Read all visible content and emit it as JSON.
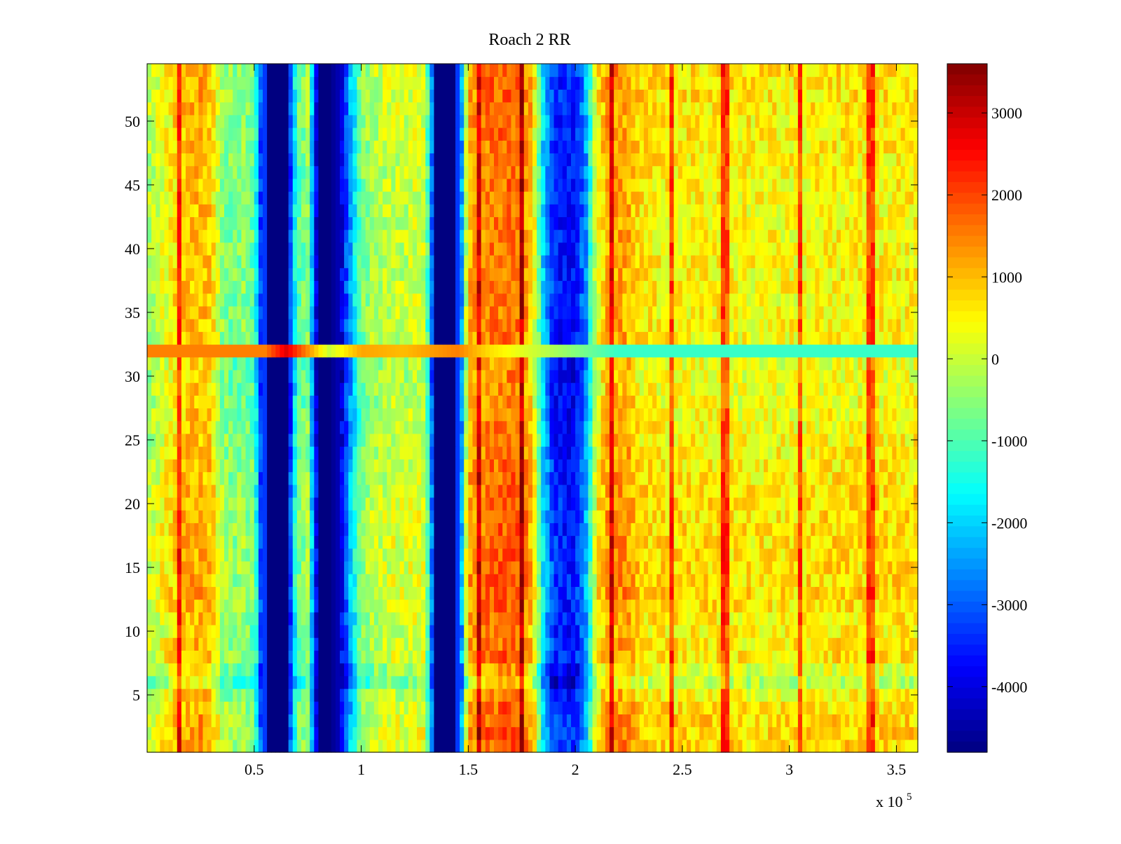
{
  "chart_data": {
    "type": "heatmap",
    "title": "Roach 2 RR",
    "xlabel": "",
    "ylabel": "",
    "x_multiplier_label": "x 10",
    "x_multiplier_exponent": "5",
    "xlim": [
      0,
      3.6
    ],
    "ylim": [
      0.5,
      54.5
    ],
    "x_ticks": [
      0.5,
      1,
      1.5,
      2,
      2.5,
      3,
      3.5
    ],
    "x_tick_labels": [
      "0.5",
      "1",
      "1.5",
      "2",
      "2.5",
      "3",
      "3.5"
    ],
    "y_ticks": [
      5,
      10,
      15,
      20,
      25,
      30,
      35,
      40,
      45,
      50
    ],
    "y_tick_labels": [
      "5",
      "10",
      "15",
      "20",
      "25",
      "30",
      "35",
      "40",
      "45",
      "50"
    ],
    "rows": 54,
    "colormap": "jet",
    "colorbar": {
      "clim": [
        -4800,
        3600
      ],
      "ticks": [
        3000,
        2000,
        1000,
        0,
        -1000,
        -2000,
        -3000,
        -4000
      ],
      "tick_labels": [
        "3000",
        "2000",
        "1000",
        "0",
        "-1000",
        "-2000",
        "-3000",
        "-4000"
      ],
      "levels": 64
    },
    "column_profile": {
      "x_units": "x 10^5",
      "x": [
        0.0,
        0.05,
        0.1,
        0.15,
        0.2,
        0.25,
        0.3,
        0.35,
        0.4,
        0.45,
        0.5,
        0.55,
        0.6,
        0.65,
        0.7,
        0.75,
        0.8,
        0.85,
        0.9,
        0.95,
        1.0,
        1.05,
        1.1,
        1.15,
        1.2,
        1.25,
        1.3,
        1.35,
        1.4,
        1.45,
        1.5,
        1.55,
        1.6,
        1.65,
        1.7,
        1.75,
        1.8,
        1.85,
        1.9,
        1.95,
        2.0,
        2.05,
        2.1,
        2.15,
        2.2,
        2.25,
        2.3,
        2.4,
        2.6,
        2.8,
        3.0,
        3.2,
        3.4,
        3.6
      ],
      "value": [
        -300,
        0,
        400,
        800,
        900,
        1000,
        800,
        -400,
        -700,
        -500,
        -900,
        -4800,
        -4800,
        -4800,
        -1000,
        -500,
        -4800,
        -4800,
        -4300,
        -2400,
        -700,
        -300,
        -200,
        0,
        -100,
        100,
        0,
        -4800,
        -4800,
        -4800,
        1000,
        1300,
        1500,
        1600,
        1700,
        1600,
        800,
        -2000,
        -3500,
        -3700,
        -3700,
        -2500,
        300,
        1100,
        1200,
        1100,
        600,
        500,
        500,
        400,
        400,
        500,
        500,
        500
      ]
    },
    "row_profile": {
      "y": [
        1,
        3,
        5,
        6,
        7,
        8,
        10,
        13,
        15,
        20,
        25,
        30,
        31,
        32,
        33,
        35,
        40,
        45,
        50,
        53,
        54
      ],
      "offset": [
        300,
        300,
        0,
        -600,
        -300,
        200,
        0,
        300,
        200,
        200,
        0,
        -200,
        -200,
        0,
        0,
        0,
        0,
        0,
        100,
        200,
        200
      ]
    },
    "row_32_band": {
      "y": 32,
      "x": [
        0.55,
        0.65,
        0.85,
        1.0,
        1.2,
        1.45,
        1.6,
        2.2,
        3.6
      ],
      "value": [
        1500,
        2800,
        0,
        1200,
        1000,
        1500,
        700,
        -1200,
        -1200
      ]
    }
  }
}
